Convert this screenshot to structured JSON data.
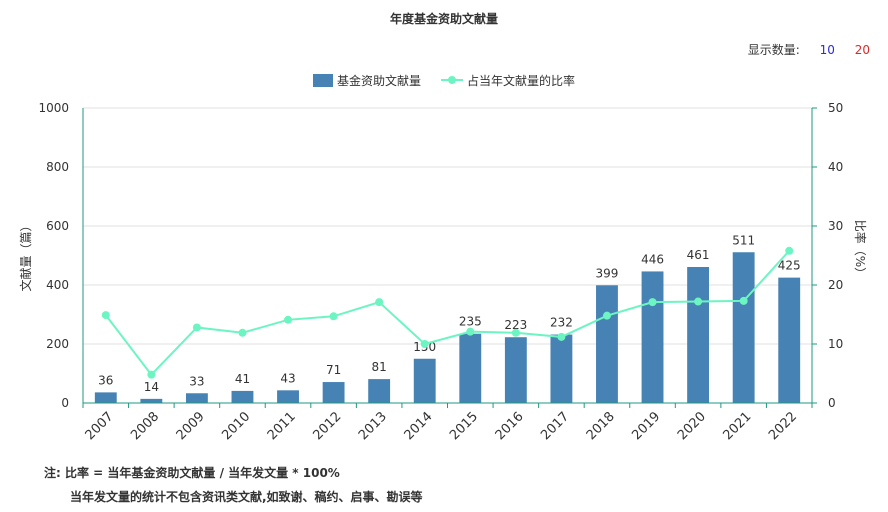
{
  "title": "年度基金资助文献量",
  "display_count": {
    "label": "显示数量:",
    "options": [
      "10",
      "20"
    ]
  },
  "note": {
    "line1": "注:  比率 = 当年基金资助文献量 / 当年发文量 * 100%",
    "line2": "当年发文量的统计不包含资讯类文献,如致谢、稿约、启事、勘误等"
  },
  "colors": {
    "bar": "#4682b4",
    "line": "#6cf5c2",
    "axis_right": "#1f9a80"
  },
  "chart_data": {
    "type": "bar",
    "categories": [
      "2007",
      "2008",
      "2009",
      "2010",
      "2011",
      "2012",
      "2013",
      "2014",
      "2015",
      "2016",
      "2017",
      "2018",
      "2019",
      "2020",
      "2021",
      "2022"
    ],
    "series": [
      {
        "name": "基金资助文献量",
        "type": "bar",
        "values": [
          36,
          14,
          33,
          41,
          43,
          71,
          81,
          150,
          235,
          223,
          232,
          399,
          446,
          461,
          511,
          425
        ]
      },
      {
        "name": "占当年文献量的比率",
        "type": "line",
        "values": [
          14.9,
          4.8,
          12.8,
          11.9,
          14.1,
          14.7,
          17.1,
          10.0,
          12.1,
          11.9,
          11.2,
          14.8,
          17.1,
          17.2,
          17.3,
          25.8
        ]
      }
    ],
    "ylabel": "文献量（篇）",
    "y2label": "比率（%）",
    "ylim": [
      0,
      1000
    ],
    "y2lim": [
      0,
      50
    ],
    "yticks": [
      0,
      200,
      400,
      600,
      800,
      1000
    ],
    "y2ticks": [
      0,
      10,
      20,
      30,
      40,
      50
    ],
    "grid": true,
    "legend_position": "top-center"
  }
}
